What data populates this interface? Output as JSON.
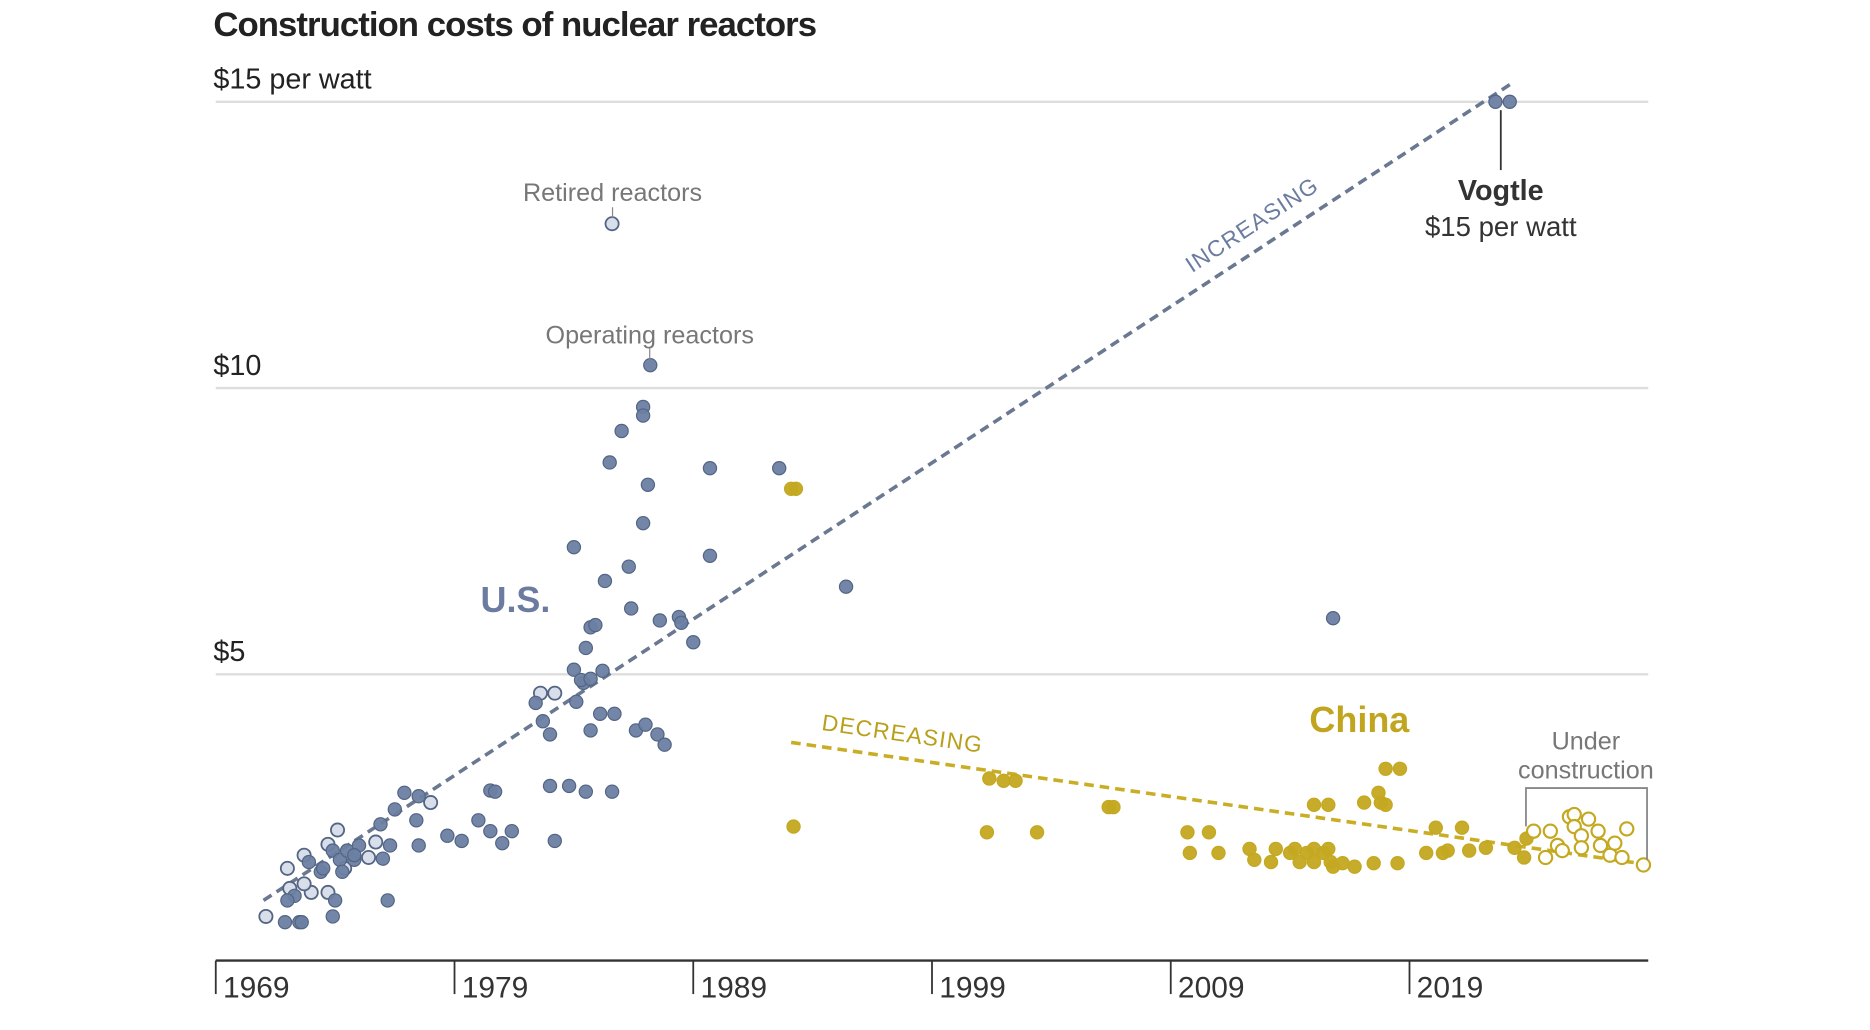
{
  "chart_data": {
    "type": "scatter",
    "title": "Construction costs of nuclear reactors",
    "ylabel": "$15 per watt",
    "ylim": [
      0,
      15
    ],
    "xlim": [
      1969,
      2029
    ],
    "y_ticks": [
      {
        "value": 15,
        "label": "$15 per watt"
      },
      {
        "value": 10,
        "label": "$10"
      },
      {
        "value": 5,
        "label": "$5"
      }
    ],
    "x_ticks": [
      {
        "value": 1969,
        "label": "1969"
      },
      {
        "value": 1979,
        "label": "1979"
      },
      {
        "value": 1989,
        "label": "1989"
      },
      {
        "value": 1999,
        "label": "1999"
      },
      {
        "value": 2009,
        "label": "2009"
      },
      {
        "value": 2019,
        "label": "2019"
      }
    ],
    "grid": true,
    "colors": {
      "us": "#6b7fa3",
      "us_stroke": "#536583",
      "retired": "#d6dce9",
      "china": "#c4a820",
      "grid": "#dddddd",
      "axis": "#333333"
    },
    "annotations": {
      "retired": "Retired reactors",
      "operating": "Operating reactors",
      "us": "U.S.",
      "china": "China",
      "increasing": "INCREASING",
      "decreasing": "DECREASING",
      "vogtle_name": "Vogtle",
      "vogtle_cost": "$15 per watt",
      "under1": "Under",
      "under2": "construction"
    },
    "trendlines": [
      {
        "name": "us-trend",
        "from": [
          1971.0,
          1.05
        ],
        "to": [
          2023.2,
          15.3
        ]
      },
      {
        "name": "china-trend",
        "from": [
          1993.1,
          3.81
        ],
        "to": [
          2029.1,
          1.67
        ]
      }
    ],
    "series": [
      {
        "name": "U.S. retired reactors",
        "style": "retired",
        "points": [
          [
            1971.1,
            0.77
          ],
          [
            1972.0,
            1.61
          ],
          [
            1972.1,
            1.26
          ],
          [
            1972.7,
            1.84
          ],
          [
            1973.0,
            1.19
          ],
          [
            1973.7,
            2.03
          ],
          [
            1974.1,
            2.28
          ],
          [
            1973.7,
            1.19
          ],
          [
            1974.4,
            1.61
          ],
          [
            1975.7,
            2.07
          ],
          [
            1975.4,
            1.8
          ],
          [
            1978.0,
            2.76
          ],
          [
            1982.6,
            4.67
          ],
          [
            1983.2,
            4.67
          ],
          [
            1985.6,
            12.87
          ],
          [
            1972.7,
            1.34
          ]
        ]
      },
      {
        "name": "U.S. operating reactors",
        "style": "us",
        "points": [
          [
            1971.9,
            0.67
          ],
          [
            1972.5,
            0.67
          ],
          [
            1972.6,
            0.67
          ],
          [
            1972.3,
            1.13
          ],
          [
            1972.0,
            1.05
          ],
          [
            1972.9,
            1.72
          ],
          [
            1973.4,
            1.55
          ],
          [
            1973.9,
            0.77
          ],
          [
            1974.0,
            1.05
          ],
          [
            1973.9,
            1.92
          ],
          [
            1974.2,
            1.76
          ],
          [
            1974.5,
            1.92
          ],
          [
            1974.8,
            1.76
          ],
          [
            1975.0,
            2.01
          ],
          [
            1974.8,
            1.84
          ],
          [
            1974.3,
            1.55
          ],
          [
            1973.5,
            1.61
          ],
          [
            1975.9,
            2.38
          ],
          [
            1976.3,
            2.01
          ],
          [
            1976.0,
            1.78
          ],
          [
            1976.2,
            1.05
          ],
          [
            1976.9,
            2.93
          ],
          [
            1976.5,
            2.64
          ],
          [
            1977.5,
            2.87
          ],
          [
            1977.4,
            2.45
          ],
          [
            1977.5,
            2.01
          ],
          [
            1978.7,
            2.18
          ],
          [
            1979.3,
            2.09
          ],
          [
            1980.0,
            2.45
          ],
          [
            1980.5,
            2.97
          ],
          [
            1980.7,
            2.95
          ],
          [
            1980.5,
            2.26
          ],
          [
            1981.0,
            2.05
          ],
          [
            1981.4,
            2.26
          ],
          [
            1982.4,
            4.5
          ],
          [
            1982.7,
            4.18
          ],
          [
            1983.0,
            3.95
          ],
          [
            1983.2,
            2.09
          ],
          [
            1983.0,
            3.05
          ],
          [
            1983.8,
            3.05
          ],
          [
            1984.5,
            2.95
          ],
          [
            1985.6,
            2.95
          ],
          [
            1984.0,
            7.22
          ],
          [
            1984.0,
            5.08
          ],
          [
            1984.4,
            4.85
          ],
          [
            1984.5,
            5.46
          ],
          [
            1984.7,
            5.82
          ],
          [
            1984.9,
            5.86
          ],
          [
            1985.3,
            6.63
          ],
          [
            1984.3,
            4.9
          ],
          [
            1984.7,
            4.92
          ],
          [
            1985.2,
            5.06
          ],
          [
            1984.1,
            4.52
          ],
          [
            1985.1,
            4.31
          ],
          [
            1985.7,
            4.31
          ],
          [
            1984.7,
            4.02
          ],
          [
            1986.6,
            4.02
          ],
          [
            1987.0,
            4.12
          ],
          [
            1987.5,
            3.95
          ],
          [
            1987.8,
            3.77
          ],
          [
            1985.5,
            8.7
          ],
          [
            1986.0,
            9.25
          ],
          [
            1986.9,
            9.67
          ],
          [
            1986.9,
            9.52
          ],
          [
            1987.1,
            8.31
          ],
          [
            1986.9,
            7.64
          ],
          [
            1986.3,
            6.88
          ],
          [
            1986.4,
            6.15
          ],
          [
            1987.6,
            5.94
          ],
          [
            1988.4,
            6.0
          ],
          [
            1988.5,
            5.9
          ],
          [
            1989.0,
            5.56
          ],
          [
            1989.7,
            8.6
          ],
          [
            1989.7,
            7.07
          ],
          [
            1987.2,
            10.4
          ],
          [
            1992.6,
            8.6
          ],
          [
            1995.4,
            6.53
          ],
          [
            2015.8,
            5.98
          ],
          [
            2022.6,
            15.0
          ],
          [
            2023.2,
            15.0
          ]
        ]
      },
      {
        "name": "China operating reactors",
        "style": "china",
        "points": [
          [
            1993.1,
            8.24
          ],
          [
            1993.3,
            8.24
          ],
          [
            1993.2,
            2.34
          ],
          [
            2001.3,
            2.24
          ],
          [
            2001.4,
            3.18
          ],
          [
            2002.0,
            3.14
          ],
          [
            2002.5,
            3.14
          ],
          [
            2003.4,
            2.24
          ],
          [
            2006.4,
            2.68
          ],
          [
            2006.6,
            2.68
          ],
          [
            2009.7,
            2.24
          ],
          [
            2010.6,
            2.24
          ],
          [
            2009.8,
            1.88
          ],
          [
            2011.0,
            1.88
          ],
          [
            2012.3,
            1.95
          ],
          [
            2012.5,
            1.76
          ],
          [
            2013.2,
            1.72
          ],
          [
            2013.4,
            1.95
          ],
          [
            2014.0,
            1.88
          ],
          [
            2014.2,
            1.95
          ],
          [
            2014.4,
            1.72
          ],
          [
            2014.7,
            1.88
          ],
          [
            2015.0,
            1.95
          ],
          [
            2015.0,
            1.72
          ],
          [
            2015.4,
            1.88
          ],
          [
            2015.6,
            1.95
          ],
          [
            2015.7,
            1.72
          ],
          [
            2015.8,
            1.64
          ],
          [
            2016.2,
            1.7
          ],
          [
            2016.7,
            1.64
          ],
          [
            2017.5,
            1.7
          ],
          [
            2018.5,
            1.7
          ],
          [
            2015.0,
            2.72
          ],
          [
            2015.6,
            2.72
          ],
          [
            2017.1,
            2.76
          ],
          [
            2017.7,
            2.93
          ],
          [
            2017.8,
            2.76
          ],
          [
            2018.0,
            2.72
          ],
          [
            2018.0,
            3.35
          ],
          [
            2018.6,
            3.35
          ],
          [
            2019.7,
            1.88
          ],
          [
            2020.1,
            2.32
          ],
          [
            2020.4,
            1.88
          ],
          [
            2020.6,
            1.92
          ],
          [
            2021.2,
            2.32
          ],
          [
            2021.5,
            1.92
          ],
          [
            2022.2,
            1.97
          ],
          [
            2023.4,
            1.97
          ],
          [
            2023.8,
            1.8
          ],
          [
            2023.9,
            2.13
          ]
        ]
      },
      {
        "name": "China reactors under construction",
        "style": "china-open",
        "points": [
          [
            2024.2,
            2.26
          ],
          [
            2024.7,
            1.8
          ],
          [
            2024.9,
            2.26
          ],
          [
            2025.2,
            2.01
          ],
          [
            2025.7,
            2.51
          ],
          [
            2025.9,
            2.55
          ],
          [
            2025.9,
            2.34
          ],
          [
            2026.2,
            2.18
          ],
          [
            2026.5,
            2.47
          ],
          [
            2026.9,
            2.26
          ],
          [
            2027.0,
            2.01
          ],
          [
            2026.2,
            1.97
          ],
          [
            2027.4,
            1.84
          ],
          [
            2027.6,
            2.05
          ],
          [
            2027.9,
            1.8
          ],
          [
            2028.1,
            2.3
          ],
          [
            2028.8,
            1.67
          ],
          [
            2025.4,
            1.92
          ]
        ]
      }
    ]
  }
}
